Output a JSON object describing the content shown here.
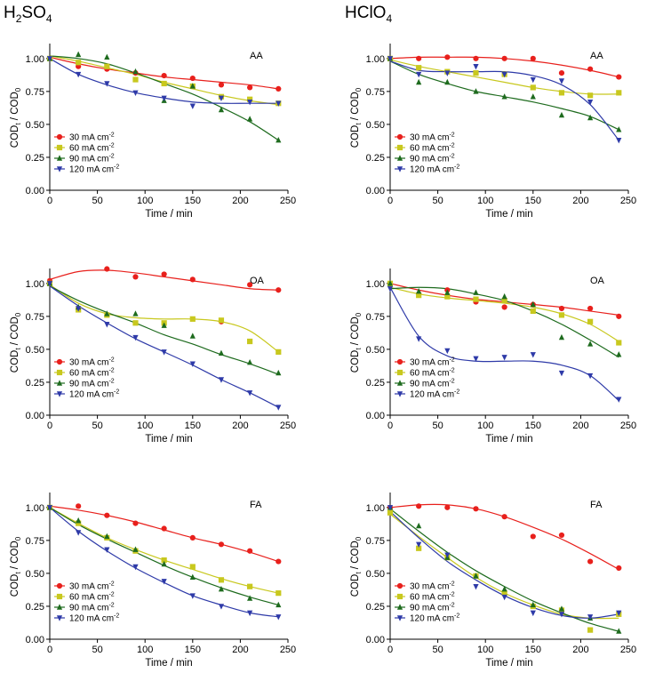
{
  "columns": {
    "left": {
      "title": "H",
      "title_sub": "2",
      "title_rest": "SO",
      "title_sub2": "4"
    },
    "right": {
      "title": "HClO",
      "title_sub": "4"
    }
  },
  "common": {
    "xlabel": "Time / min",
    "ylabel_main": "COD",
    "ylabel_sub1": "t",
    "ylabel_mid": " / COD",
    "ylabel_sub2": "0",
    "xticks": [
      "0",
      "50",
      "100",
      "150",
      "200",
      "250"
    ],
    "yticks": [
      "0.00",
      "0.25",
      "0.50",
      "0.75",
      "1.00"
    ],
    "legend": [
      {
        "value": "30 mA cm",
        "sup": "-2",
        "color": "#e8201c",
        "marker": "circle"
      },
      {
        "value": "60 mA cm",
        "sup": "-2",
        "color": "#c8c81e",
        "marker": "square"
      },
      {
        "value": "90 mA cm",
        "sup": "-2",
        "color": "#1e6b1e",
        "marker": "triangle-up"
      },
      {
        "value": "120 mA cm",
        "sup": "-2",
        "color": "#2e3aa8",
        "marker": "triangle-down"
      }
    ]
  },
  "chart_data": [
    {
      "type": "scatter",
      "panel": "AA",
      "electrolyte": "H2SO4",
      "xlim": [
        0,
        250
      ],
      "ylim": [
        0,
        1.1
      ],
      "x": [
        0,
        30,
        60,
        90,
        120,
        150,
        180,
        210,
        240
      ],
      "series": [
        {
          "name": "30 mA cm-2",
          "values": [
            1.0,
            0.94,
            0.92,
            0.89,
            0.87,
            0.85,
            0.8,
            0.78,
            0.77
          ]
        },
        {
          "name": "60 mA cm-2",
          "values": [
            1.0,
            0.97,
            0.94,
            0.84,
            0.81,
            0.79,
            0.71,
            0.69,
            0.66
          ]
        },
        {
          "name": "90 mA cm-2",
          "values": [
            1.0,
            1.03,
            1.01,
            0.9,
            0.68,
            0.79,
            0.61,
            0.54,
            0.38
          ]
        },
        {
          "name": "120 mA cm-2",
          "values": [
            1.0,
            0.88,
            0.81,
            0.74,
            0.7,
            0.64,
            0.7,
            0.67,
            0.66
          ]
        }
      ],
      "fits": [
        [
          1.01,
          0.96,
          0.92,
          0.89,
          0.86,
          0.84,
          0.82,
          0.8,
          0.77
        ],
        [
          1.02,
          0.98,
          0.93,
          0.88,
          0.82,
          0.77,
          0.72,
          0.68,
          0.65
        ],
        [
          1.02,
          1.0,
          0.96,
          0.89,
          0.81,
          0.73,
          0.63,
          0.52,
          0.38
        ],
        [
          1.0,
          0.88,
          0.8,
          0.74,
          0.7,
          0.67,
          0.66,
          0.66,
          0.66
        ]
      ]
    },
    {
      "type": "scatter",
      "panel": "AA",
      "electrolyte": "HClO4",
      "xlim": [
        0,
        250
      ],
      "ylim": [
        0,
        1.1
      ],
      "x": [
        0,
        30,
        60,
        90,
        120,
        150,
        180,
        210,
        240
      ],
      "series": [
        {
          "name": "30 mA cm-2",
          "values": [
            1.0,
            1.0,
            1.01,
            1.0,
            1.0,
            1.0,
            0.89,
            0.92,
            0.86
          ]
        },
        {
          "name": "60 mA cm-2",
          "values": [
            1.0,
            0.93,
            0.9,
            0.89,
            0.88,
            0.78,
            0.74,
            0.72,
            0.74
          ]
        },
        {
          "name": "90 mA cm-2",
          "values": [
            1.0,
            0.82,
            0.82,
            0.75,
            0.71,
            0.71,
            0.57,
            0.55,
            0.46
          ]
        },
        {
          "name": "120 mA cm-2",
          "values": [
            1.0,
            0.88,
            0.89,
            0.94,
            0.88,
            0.84,
            0.83,
            0.67,
            0.38
          ]
        }
      ],
      "fits": [
        [
          1.0,
          1.01,
          1.01,
          1.01,
          1.0,
          0.98,
          0.95,
          0.91,
          0.86
        ],
        [
          0.99,
          0.94,
          0.9,
          0.86,
          0.82,
          0.78,
          0.75,
          0.73,
          0.73
        ],
        [
          0.98,
          0.88,
          0.81,
          0.75,
          0.71,
          0.67,
          0.62,
          0.56,
          0.46
        ],
        [
          0.98,
          0.91,
          0.9,
          0.9,
          0.9,
          0.87,
          0.8,
          0.65,
          0.38
        ]
      ]
    },
    {
      "type": "scatter",
      "panel": "OA",
      "electrolyte": "H2SO4",
      "xlim": [
        0,
        250
      ],
      "ylim": [
        0,
        1.1
      ],
      "x": [
        0,
        30,
        60,
        90,
        120,
        150,
        180,
        210,
        240
      ],
      "series": [
        {
          "name": "30 mA cm-2",
          "values": [
            1.02,
            0.81,
            1.11,
            1.05,
            1.07,
            1.03,
            0.71,
            0.99,
            0.95
          ]
        },
        {
          "name": "60 mA cm-2",
          "values": [
            1.0,
            0.8,
            0.76,
            0.7,
            0.7,
            0.73,
            0.72,
            0.56,
            0.48
          ]
        },
        {
          "name": "90 mA cm-2",
          "values": [
            1.0,
            0.82,
            0.77,
            0.77,
            0.68,
            0.6,
            0.47,
            0.4,
            0.32
          ]
        },
        {
          "name": "120 mA cm-2",
          "values": [
            1.0,
            0.81,
            0.69,
            0.59,
            0.48,
            0.39,
            0.27,
            0.17,
            0.06
          ]
        }
      ],
      "fits": [
        [
          1.03,
          1.09,
          1.1,
          1.08,
          1.05,
          1.02,
          0.99,
          0.96,
          0.95
        ],
        [
          0.99,
          0.85,
          0.77,
          0.74,
          0.73,
          0.73,
          0.71,
          0.64,
          0.48
        ],
        [
          0.98,
          0.87,
          0.78,
          0.7,
          0.61,
          0.54,
          0.46,
          0.39,
          0.31
        ],
        [
          0.98,
          0.83,
          0.7,
          0.58,
          0.48,
          0.38,
          0.27,
          0.17,
          0.06
        ]
      ]
    },
    {
      "type": "scatter",
      "panel": "OA",
      "electrolyte": "HClO4",
      "xlim": [
        0,
        250
      ],
      "ylim": [
        0,
        1.1
      ],
      "x": [
        0,
        30,
        60,
        90,
        120,
        150,
        180,
        210,
        240
      ],
      "series": [
        {
          "name": "30 mA cm-2",
          "values": [
            1.0,
            0.92,
            0.95,
            0.86,
            0.82,
            0.84,
            0.81,
            0.81,
            0.75
          ]
        },
        {
          "name": "60 mA cm-2",
          "values": [
            1.0,
            0.91,
            0.9,
            0.88,
            0.87,
            0.79,
            0.76,
            0.71,
            0.55
          ]
        },
        {
          "name": "90 mA cm-2",
          "values": [
            1.0,
            0.94,
            0.93,
            0.93,
            0.9,
            0.84,
            0.59,
            0.54,
            0.46
          ]
        },
        {
          "name": "120 mA cm-2",
          "values": [
            0.96,
            0.58,
            0.49,
            0.43,
            0.44,
            0.46,
            0.32,
            0.3,
            0.12
          ]
        }
      ],
      "fits": [
        [
          1.0,
          0.95,
          0.91,
          0.88,
          0.86,
          0.84,
          0.82,
          0.79,
          0.76
        ],
        [
          0.97,
          0.92,
          0.89,
          0.87,
          0.85,
          0.82,
          0.77,
          0.69,
          0.56
        ],
        [
          0.96,
          0.97,
          0.96,
          0.92,
          0.87,
          0.79,
          0.69,
          0.57,
          0.44
        ],
        [
          0.97,
          0.6,
          0.45,
          0.41,
          0.41,
          0.41,
          0.38,
          0.3,
          0.11
        ]
      ]
    },
    {
      "type": "scatter",
      "panel": "FA",
      "electrolyte": "H2SO4",
      "xlim": [
        0,
        250
      ],
      "ylim": [
        0,
        1.1
      ],
      "x": [
        0,
        30,
        60,
        90,
        120,
        150,
        180,
        210,
        240
      ],
      "series": [
        {
          "name": "30 mA cm-2",
          "values": [
            1.0,
            1.01,
            0.94,
            0.88,
            0.84,
            0.77,
            0.72,
            0.67,
            0.59
          ]
        },
        {
          "name": "60 mA cm-2",
          "values": [
            1.0,
            0.88,
            0.77,
            0.67,
            0.6,
            0.55,
            0.45,
            0.4,
            0.35
          ]
        },
        {
          "name": "90 mA cm-2",
          "values": [
            1.0,
            0.9,
            0.78,
            0.68,
            0.57,
            0.47,
            0.38,
            0.31,
            0.26
          ]
        },
        {
          "name": "120 mA cm-2",
          "values": [
            1.0,
            0.81,
            0.68,
            0.55,
            0.44,
            0.33,
            0.25,
            0.2,
            0.17
          ]
        }
      ],
      "fits": [
        [
          1.01,
          0.98,
          0.94,
          0.89,
          0.83,
          0.77,
          0.72,
          0.66,
          0.59
        ],
        [
          1.0,
          0.88,
          0.77,
          0.68,
          0.6,
          0.53,
          0.46,
          0.4,
          0.35
        ],
        [
          1.0,
          0.87,
          0.76,
          0.66,
          0.56,
          0.47,
          0.39,
          0.32,
          0.26
        ],
        [
          1.0,
          0.82,
          0.67,
          0.54,
          0.43,
          0.33,
          0.26,
          0.2,
          0.17
        ]
      ]
    },
    {
      "type": "scatter",
      "panel": "FA",
      "electrolyte": "HClO4",
      "xlim": [
        0,
        250
      ],
      "ylim": [
        0,
        1.1
      ],
      "x": [
        0,
        30,
        60,
        90,
        120,
        150,
        180,
        210,
        240
      ],
      "series": [
        {
          "name": "30 mA cm-2",
          "values": [
            1.0,
            1.01,
            1.0,
            0.99,
            0.93,
            0.78,
            0.79,
            0.59,
            0.54
          ]
        },
        {
          "name": "60 mA cm-2",
          "values": [
            0.96,
            0.69,
            0.62,
            0.48,
            0.35,
            0.25,
            0.22,
            0.07,
            0.19
          ]
        },
        {
          "name": "90 mA cm-2",
          "values": [
            1.0,
            0.86,
            0.62,
            0.48,
            0.38,
            0.26,
            0.23,
            0.16,
            0.06
          ]
        },
        {
          "name": "120 mA cm-2",
          "values": [
            1.0,
            0.72,
            0.64,
            0.4,
            0.32,
            0.2,
            0.19,
            0.17,
            0.2
          ]
        }
      ],
      "fits": [
        [
          1.0,
          1.02,
          1.02,
          0.99,
          0.93,
          0.85,
          0.76,
          0.65,
          0.53
        ],
        [
          0.95,
          0.78,
          0.62,
          0.47,
          0.35,
          0.26,
          0.19,
          0.16,
          0.16
        ],
        [
          0.99,
          0.82,
          0.66,
          0.52,
          0.4,
          0.29,
          0.2,
          0.12,
          0.06
        ],
        [
          0.97,
          0.77,
          0.59,
          0.45,
          0.33,
          0.24,
          0.18,
          0.16,
          0.19
        ]
      ]
    }
  ]
}
